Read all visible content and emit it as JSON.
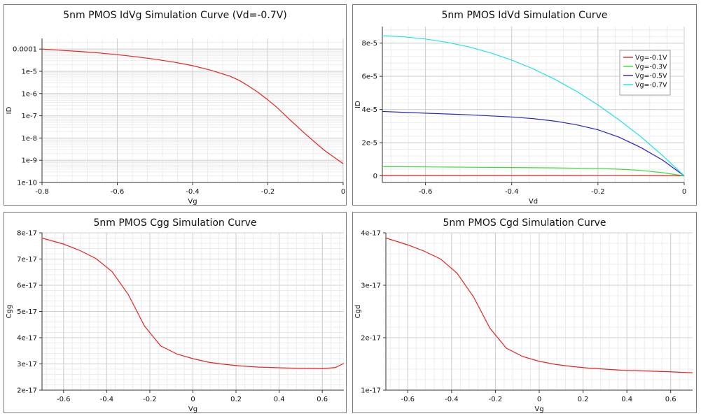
{
  "chart_data": [
    {
      "type": "line",
      "title": "5nm PMOS IdVg Simulation Curve (Vd=-0.7V)",
      "xlabel": "Vg",
      "ylabel": "ID",
      "xlim": [
        -0.8,
        0
      ],
      "ylim": [
        1e-10,
        0.0003
      ],
      "yscale": "log",
      "grid": true,
      "xticks": [
        -0.8,
        -0.6,
        -0.4,
        -0.2,
        0
      ],
      "xticklabels": [
        "-0.8",
        "-0.6",
        "-0.4",
        "-0.2",
        "0"
      ],
      "yticks": [
        1e-10,
        1e-09,
        1e-08,
        1e-07,
        1e-06,
        1e-05,
        0.0001
      ],
      "yticklabels": [
        "1e-10",
        "1e-9",
        "1e-8",
        "1e-7",
        "1e-6",
        "1e-5",
        "0.0001"
      ],
      "series": [
        {
          "color": "#e8231f",
          "x": [
            -0.8,
            -0.75,
            -0.7,
            -0.65,
            -0.6,
            -0.55,
            -0.5,
            -0.45,
            -0.4,
            -0.35,
            -0.3,
            -0.275,
            -0.25,
            -0.225,
            -0.2,
            -0.175,
            -0.15,
            -0.1,
            -0.05,
            0
          ],
          "y": [
            0.0001,
            8.8e-05,
            7.8e-05,
            6.7e-05,
            5.6e-05,
            4.5e-05,
            3.5e-05,
            2.6e-05,
            1.8e-05,
            1.1e-05,
            6e-06,
            3.8e-06,
            2.1e-06,
            1.1e-06,
            5.2e-07,
            2.3e-07,
            9e-08,
            1.5e-08,
            2.8e-09,
            7e-10
          ]
        }
      ]
    },
    {
      "type": "line",
      "title": "5nm PMOS IdVd Simulation Curve",
      "xlabel": "Vd",
      "ylabel": "ID",
      "xlim": [
        -0.7,
        0
      ],
      "ylim": [
        -4e-06,
        9e-05
      ],
      "grid": true,
      "legend": "top-right",
      "xticks": [
        -0.6,
        -0.4,
        -0.2,
        0
      ],
      "xticklabels": [
        "-0.6",
        "-0.4",
        "-0.2",
        "0"
      ],
      "yticks": [
        0,
        2e-05,
        4e-05,
        6e-05,
        8e-05
      ],
      "yticklabels": [
        "0",
        "2e-5",
        "4e-5",
        "6e-5",
        "8e-5"
      ],
      "series": [
        {
          "name": "Vg=-0.1V",
          "color": "#e8231f",
          "x": [
            -0.7,
            -0.6,
            -0.5,
            -0.4,
            -0.3,
            -0.2,
            -0.1,
            0
          ],
          "y": [
            1e-07,
            1e-07,
            1e-07,
            1e-07,
            1e-07,
            9e-08,
            7e-08,
            0
          ]
        },
        {
          "name": "Vg=-0.3V",
          "color": "#3ddc34",
          "x": [
            -0.7,
            -0.6,
            -0.5,
            -0.4,
            -0.3,
            -0.2,
            -0.15,
            -0.1,
            -0.05,
            0
          ],
          "y": [
            5.6e-06,
            5.4e-06,
            5.2e-06,
            5e-06,
            4.8e-06,
            4.4e-06,
            4e-06,
            3.3e-06,
            1.9e-06,
            0
          ]
        },
        {
          "name": "Vg=-0.5V",
          "color": "#2222cc",
          "x": [
            -0.7,
            -0.6,
            -0.5,
            -0.4,
            -0.35,
            -0.3,
            -0.25,
            -0.2,
            -0.15,
            -0.1,
            -0.05,
            0
          ],
          "y": [
            3.88e-05,
            3.78e-05,
            3.68e-05,
            3.55e-05,
            3.45e-05,
            3.3e-05,
            3.08e-05,
            2.78e-05,
            2.32e-05,
            1.7e-05,
            9.5e-06,
            0
          ]
        },
        {
          "name": "Vg=-0.7V",
          "color": "#1fe2e8",
          "x": [
            -0.7,
            -0.65,
            -0.6,
            -0.55,
            -0.5,
            -0.45,
            -0.4,
            -0.35,
            -0.3,
            -0.25,
            -0.2,
            -0.15,
            -0.1,
            -0.05,
            0
          ],
          "y": [
            8.45e-05,
            8.38e-05,
            8.25e-05,
            8.05e-05,
            7.78e-05,
            7.42e-05,
            6.98e-05,
            6.45e-05,
            5.82e-05,
            5.1e-05,
            4.28e-05,
            3.35e-05,
            2.35e-05,
            1.22e-05,
            0
          ]
        }
      ]
    },
    {
      "type": "line",
      "title": "5nm PMOS Cgg Simulation Curve",
      "xlabel": "Vg",
      "ylabel": "Cgg",
      "xlim": [
        -0.7,
        0.7
      ],
      "ylim": [
        2e-17,
        8e-17
      ],
      "grid": true,
      "xticks": [
        -0.6,
        -0.4,
        -0.2,
        0,
        0.2,
        0.4,
        0.6
      ],
      "xticklabels": [
        "-0.6",
        "-0.4",
        "-0.2",
        "0",
        "0.2",
        "0.4",
        "0.6"
      ],
      "yticks": [
        2e-17,
        3e-17,
        4e-17,
        5e-17,
        6e-17,
        7e-17,
        8e-17
      ],
      "yticklabels": [
        "2e-17",
        "3e-17",
        "4e-17",
        "5e-17",
        "6e-17",
        "7e-17",
        "8e-17"
      ],
      "series": [
        {
          "color": "#e8231f",
          "x": [
            -0.7,
            -0.6,
            -0.525,
            -0.45,
            -0.375,
            -0.3,
            -0.225,
            -0.15,
            -0.075,
            0,
            0.075,
            0.15,
            0.225,
            0.3,
            0.375,
            0.45,
            0.525,
            0.6,
            0.66,
            0.7
          ],
          "y": [
            7.8e-17,
            7.57e-17,
            7.33e-17,
            7.02e-17,
            6.52e-17,
            5.65e-17,
            4.45e-17,
            3.69e-17,
            3.38e-17,
            3.2e-17,
            3.06e-17,
            2.98e-17,
            2.92e-17,
            2.88e-17,
            2.86e-17,
            2.84e-17,
            2.83e-17,
            2.82e-17,
            2.86e-17,
            3.02e-17
          ]
        }
      ]
    },
    {
      "type": "line",
      "title": "5nm PMOS Cgd Simulation Curve",
      "xlabel": "Vg",
      "ylabel": "Cgd",
      "xlim": [
        -0.7,
        0.7
      ],
      "ylim": [
        1e-17,
        4e-17
      ],
      "grid": true,
      "xticks": [
        -0.6,
        -0.4,
        -0.2,
        0,
        0.2,
        0.4,
        0.6
      ],
      "xticklabels": [
        "-0.6",
        "-0.4",
        "-0.2",
        "0",
        "0.2",
        "0.4",
        "0.6"
      ],
      "yticks": [
        1e-17,
        2e-17,
        3e-17,
        4e-17
      ],
      "yticklabels": [
        "1e-17",
        "2e-17",
        "3e-17",
        "4e-17"
      ],
      "series": [
        {
          "color": "#e8231f",
          "x": [
            -0.7,
            -0.6,
            -0.525,
            -0.45,
            -0.375,
            -0.3,
            -0.225,
            -0.15,
            -0.075,
            0,
            0.075,
            0.15,
            0.225,
            0.3,
            0.375,
            0.45,
            0.525,
            0.6,
            0.7
          ],
          "y": [
            3.9e-17,
            3.77e-17,
            3.65e-17,
            3.5e-17,
            3.23e-17,
            2.78e-17,
            2.18e-17,
            1.8e-17,
            1.64e-17,
            1.55e-17,
            1.49e-17,
            1.45e-17,
            1.42e-17,
            1.4e-17,
            1.38e-17,
            1.37e-17,
            1.36e-17,
            1.35e-17,
            1.33e-17
          ]
        }
      ]
    }
  ]
}
